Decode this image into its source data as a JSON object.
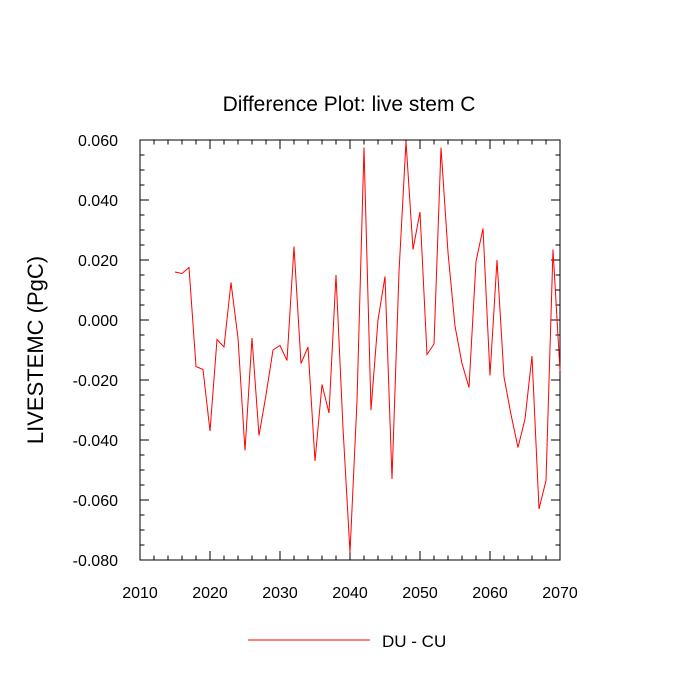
{
  "chart_data": {
    "type": "line",
    "title": "Difference Plot: live stem C",
    "xlabel": "",
    "ylabel": "LIVESTEMC  (PgC)",
    "xlim": [
      2010,
      2070
    ],
    "ylim": [
      -0.08,
      0.06
    ],
    "x_ticks": [
      2010,
      2020,
      2030,
      2040,
      2050,
      2060,
      2070
    ],
    "x_tick_labels": [
      "2010",
      "2020",
      "2030",
      "2040",
      "2050",
      "2060",
      "2070"
    ],
    "y_ticks": [
      -0.08,
      -0.06,
      -0.04,
      -0.02,
      0.0,
      0.02,
      0.04,
      0.06
    ],
    "y_tick_labels": [
      "-0.080",
      "-0.060",
      "-0.040",
      "-0.020",
      "0.000",
      "0.020",
      "0.040",
      "0.060"
    ],
    "legend_position": "bottom-center",
    "series": [
      {
        "name": "DU - CU",
        "color": "#ff0000",
        "x": [
          2015,
          2016,
          2017,
          2018,
          2019,
          2020,
          2021,
          2022,
          2023,
          2024,
          2025,
          2026,
          2027,
          2028,
          2029,
          2030,
          2031,
          2032,
          2033,
          2034,
          2035,
          2036,
          2037,
          2038,
          2039,
          2040,
          2041,
          2042,
          2043,
          2044,
          2045,
          2046,
          2047,
          2048,
          2049,
          2050,
          2051,
          2052,
          2053,
          2054,
          2055,
          2056,
          2057,
          2058,
          2059,
          2060,
          2061,
          2062,
          2063,
          2064,
          2065,
          2066,
          2067,
          2068,
          2069,
          2070
        ],
        "values": [
          0.016,
          0.0155,
          0.0175,
          -0.0155,
          -0.0165,
          -0.037,
          -0.0065,
          -0.009,
          0.0125,
          -0.006,
          -0.0435,
          -0.006,
          -0.0385,
          -0.025,
          -0.01,
          -0.0085,
          -0.0135,
          0.0245,
          -0.0145,
          -0.009,
          -0.047,
          -0.0215,
          -0.031,
          0.015,
          -0.036,
          -0.0775,
          -0.027,
          0.0575,
          -0.03,
          0.0,
          0.0145,
          -0.053,
          0.016,
          0.0595,
          0.0235,
          0.036,
          -0.0115,
          -0.008,
          0.0575,
          0.0225,
          -0.002,
          -0.0145,
          -0.0225,
          0.0195,
          0.0305,
          -0.0185,
          0.02,
          -0.019,
          -0.0315,
          -0.0425,
          -0.033,
          -0.012,
          -0.063,
          -0.0535,
          0.0235,
          -0.017
        ]
      }
    ]
  }
}
